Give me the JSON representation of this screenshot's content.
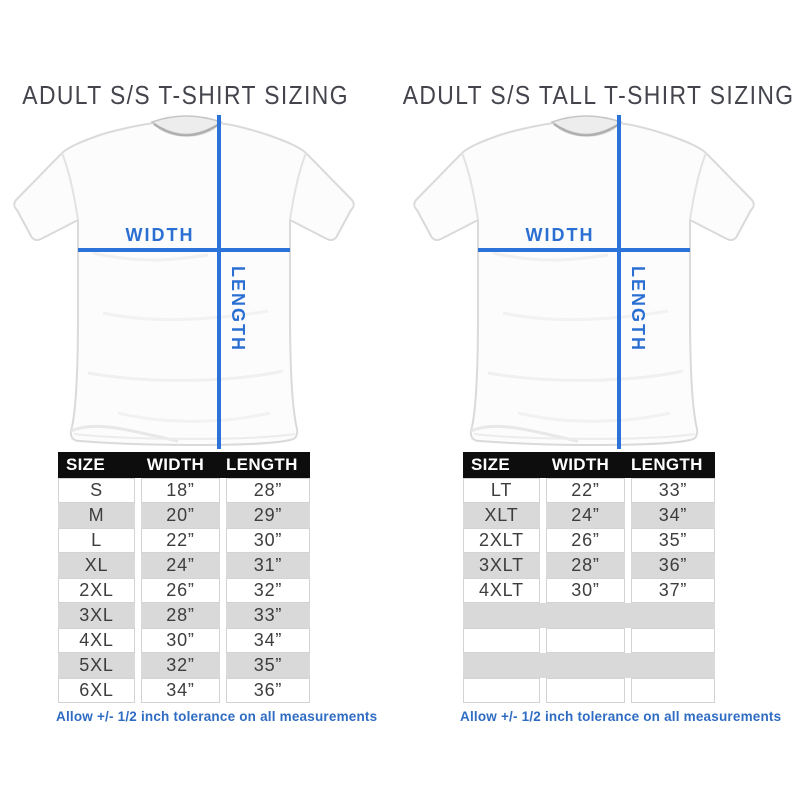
{
  "colors": {
    "measure_line_blue": "#2b73d9",
    "label_blue": "#2b6fd3",
    "note_blue": "#2f6cc3",
    "table_header_bg": "#0d0d0d",
    "table_row_alt": "#d9d9d9"
  },
  "left_panel": {
    "title": "ADULT S/S T-SHIRT SIZING",
    "width_label": "WIDTH",
    "length_label": "LENGTH",
    "table": {
      "headers": [
        "SIZE",
        "WIDTH",
        "LENGTH"
      ],
      "rows": [
        [
          "S",
          "18”",
          "28”"
        ],
        [
          "M",
          "20”",
          "29”"
        ],
        [
          "L",
          "22”",
          "30”"
        ],
        [
          "XL",
          "24”",
          "31”"
        ],
        [
          "2XL",
          "26”",
          "32”"
        ],
        [
          "3XL",
          "28”",
          "33”"
        ],
        [
          "4XL",
          "30”",
          "34”"
        ],
        [
          "5XL",
          "32”",
          "35”"
        ],
        [
          "6XL",
          "34”",
          "36”"
        ]
      ]
    },
    "note": "Allow +/- 1/2 inch tolerance on all measurements"
  },
  "right_panel": {
    "title": "ADULT S/S TALL T-SHIRT SIZING",
    "width_label": "WIDTH",
    "length_label": "LENGTH",
    "table": {
      "headers": [
        "SIZE",
        "WIDTH",
        "LENGTH"
      ],
      "rows": [
        [
          "LT",
          "22”",
          "33”"
        ],
        [
          "XLT",
          "24”",
          "34”"
        ],
        [
          "2XLT",
          "26”",
          "35”"
        ],
        [
          "3XLT",
          "28”",
          "36”"
        ],
        [
          "4XLT",
          "30”",
          "37”"
        ],
        [
          "",
          "",
          ""
        ],
        [
          "",
          "",
          ""
        ],
        [
          "",
          "",
          ""
        ],
        [
          "",
          "",
          ""
        ]
      ]
    },
    "note": "Allow +/- 1/2 inch tolerance on all measurements"
  },
  "chart_data": [
    {
      "type": "table",
      "title": "ADULT S/S T-SHIRT SIZING",
      "columns": [
        "SIZE",
        "WIDTH",
        "LENGTH"
      ],
      "units": "inches",
      "rows": [
        [
          "S",
          18,
          28
        ],
        [
          "M",
          20,
          29
        ],
        [
          "L",
          22,
          30
        ],
        [
          "XL",
          24,
          31
        ],
        [
          "2XL",
          26,
          32
        ],
        [
          "3XL",
          28,
          33
        ],
        [
          "4XL",
          30,
          34
        ],
        [
          "5XL",
          32,
          35
        ],
        [
          "6XL",
          34,
          36
        ]
      ],
      "note": "Allow +/- 1/2 inch tolerance on all measurements"
    },
    {
      "type": "table",
      "title": "ADULT S/S TALL T-SHIRT SIZING",
      "columns": [
        "SIZE",
        "WIDTH",
        "LENGTH"
      ],
      "units": "inches",
      "rows": [
        [
          "LT",
          22,
          33
        ],
        [
          "XLT",
          24,
          34
        ],
        [
          "2XLT",
          26,
          35
        ],
        [
          "3XLT",
          28,
          36
        ],
        [
          "4XLT",
          30,
          37
        ]
      ],
      "note": "Allow +/- 1/2 inch tolerance on all measurements"
    }
  ]
}
